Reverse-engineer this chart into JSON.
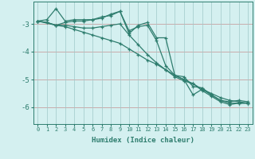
{
  "xlabel": "Humidex (Indice chaleur)",
  "bg_color": "#d4f0f0",
  "line_color": "#2e7d6e",
  "hgrid_color": "#c8a0a0",
  "vgrid_color": "#a0c8c8",
  "xlim": [
    -0.5,
    23.5
  ],
  "ylim": [
    -6.6,
    -2.2
  ],
  "yticks": [
    -6,
    -5,
    -4,
    -3
  ],
  "xticks": [
    0,
    1,
    2,
    3,
    4,
    5,
    6,
    7,
    8,
    9,
    10,
    11,
    12,
    13,
    14,
    15,
    16,
    17,
    18,
    19,
    20,
    21,
    22,
    23
  ],
  "lines": [
    {
      "x": [
        0,
        1,
        2,
        3,
        4,
        5,
        6,
        7,
        8,
        9,
        10,
        11,
        12,
        13,
        14,
        15,
        16,
        17,
        18,
        19,
        20,
        21,
        22,
        23
      ],
      "y": [
        -2.9,
        -2.85,
        -2.45,
        -2.9,
        -2.85,
        -2.85,
        -2.85,
        -2.8,
        -2.65,
        -2.55,
        -3.25,
        -3.1,
        -3.05,
        -3.6,
        -4.5,
        -4.85,
        -4.9,
        -5.25,
        -5.3,
        -5.55,
        -5.75,
        -5.8,
        -5.75,
        -5.8
      ]
    },
    {
      "x": [
        0,
        1,
        2,
        3,
        4,
        5,
        6,
        7,
        8,
        9,
        10,
        11,
        12,
        13,
        14,
        15,
        16,
        17,
        18,
        19,
        20,
        21,
        22,
        23
      ],
      "y": [
        -2.9,
        -2.95,
        -3.05,
        -3.05,
        -3.1,
        -3.15,
        -3.15,
        -3.1,
        -3.05,
        -3.0,
        -3.4,
        -3.75,
        -4.1,
        -4.4,
        -4.65,
        -4.9,
        -5.05,
        -5.15,
        -5.4,
        -5.6,
        -5.8,
        -5.9,
        -5.85,
        -5.85
      ]
    },
    {
      "x": [
        0,
        1,
        2,
        3,
        4,
        5,
        6,
        7,
        8,
        9,
        10,
        11,
        12,
        13,
        14,
        15,
        16,
        17,
        18,
        19,
        20,
        21,
        22,
        23
      ],
      "y": [
        -2.9,
        -2.95,
        -3.05,
        -3.1,
        -3.2,
        -3.3,
        -3.4,
        -3.5,
        -3.6,
        -3.7,
        -3.9,
        -4.1,
        -4.3,
        -4.45,
        -4.65,
        -4.85,
        -5.0,
        -5.15,
        -5.35,
        -5.5,
        -5.65,
        -5.75,
        -5.8,
        -5.85
      ]
    },
    {
      "x": [
        0,
        2,
        3,
        4,
        5,
        6,
        7,
        8,
        9,
        10,
        11,
        12,
        13,
        14,
        15,
        16,
        17,
        18,
        19,
        20,
        21,
        22,
        23
      ],
      "y": [
        -2.9,
        -3.05,
        -2.95,
        -2.9,
        -2.9,
        -2.85,
        -2.75,
        -2.7,
        -2.55,
        -3.35,
        -3.05,
        -2.95,
        -3.5,
        -3.5,
        -4.85,
        -5.0,
        -5.55,
        -5.35,
        -5.55,
        -5.75,
        -5.85,
        -5.85,
        -5.85
      ]
    }
  ]
}
